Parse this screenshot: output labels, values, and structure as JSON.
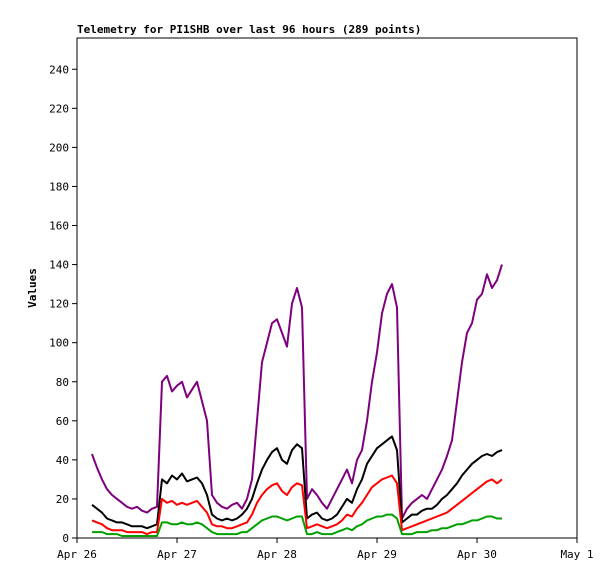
{
  "chart_data": {
    "type": "line",
    "title": "Telemetry for PI1SHB over last 96 hours (289 points)",
    "xlabel": "",
    "ylabel": "Values",
    "ylim": [
      0,
      256
    ],
    "yticks": [
      0,
      20,
      40,
      60,
      80,
      100,
      120,
      140,
      160,
      180,
      200,
      220,
      240
    ],
    "xlim": [
      "2016-04-26 00:00",
      "2016-05-01 00:00"
    ],
    "xticks": [
      "Apr 26",
      "Apr 27",
      "Apr 28",
      "Apr 29",
      "Apr 30",
      "May 1"
    ],
    "grid": false,
    "legend": "none",
    "x_time_of_day": [
      "04:00",
      "06:00",
      "08:00",
      "10:00",
      "12:00",
      "14:00",
      "16:00",
      "18:00",
      "20:00",
      "22:00"
    ],
    "x_day_index": [
      0,
      1,
      2,
      3,
      4
    ],
    "series": [
      {
        "color": "#7f007f",
        "x": [
          0.15,
          0.2,
          0.25,
          0.3,
          0.35,
          0.4,
          0.45,
          0.5,
          0.55,
          0.6,
          0.65,
          0.7,
          0.75,
          0.8,
          0.85,
          0.9,
          0.95,
          1.0,
          1.05,
          1.1,
          1.15,
          1.2,
          1.25,
          1.3,
          1.35,
          1.4,
          1.45,
          1.5,
          1.55,
          1.6,
          1.65,
          1.7,
          1.75,
          1.8,
          1.85,
          1.9,
          1.95,
          2.0,
          2.05,
          2.1,
          2.15,
          2.2,
          2.25,
          2.3,
          2.35,
          2.4,
          2.45,
          2.5,
          2.55,
          2.6,
          2.65,
          2.7,
          2.75,
          2.8,
          2.85,
          2.9,
          2.95,
          3.0,
          3.05,
          3.1,
          3.15,
          3.2,
          3.25,
          3.3,
          3.35,
          3.4,
          3.45,
          3.5,
          3.55,
          3.6,
          3.65,
          3.7,
          3.75,
          3.8,
          3.85,
          3.9,
          3.95,
          4.0,
          4.05,
          4.1,
          4.15,
          4.2,
          4.25
        ],
        "values": [
          43,
          36,
          30,
          25,
          22,
          20,
          18,
          16,
          15,
          16,
          14,
          13,
          15,
          16,
          80,
          83,
          75,
          78,
          80,
          72,
          76,
          80,
          70,
          60,
          22,
          18,
          16,
          15,
          17,
          18,
          15,
          20,
          30,
          60,
          90,
          100,
          110,
          112,
          105,
          98,
          120,
          128,
          118,
          20,
          25,
          22,
          18,
          15,
          20,
          25,
          30,
          35,
          28,
          40,
          45,
          60,
          80,
          95,
          115,
          125,
          130,
          118,
          10,
          15,
          18,
          20,
          22,
          20,
          25,
          30,
          35,
          42,
          50,
          70,
          90,
          105,
          110,
          122,
          125,
          135,
          128,
          132,
          140
        ]
      },
      {
        "color": "#000000",
        "x": [
          0.15,
          0.2,
          0.25,
          0.3,
          0.35,
          0.4,
          0.45,
          0.5,
          0.55,
          0.6,
          0.65,
          0.7,
          0.75,
          0.8,
          0.85,
          0.9,
          0.95,
          1.0,
          1.05,
          1.1,
          1.15,
          1.2,
          1.25,
          1.3,
          1.35,
          1.4,
          1.45,
          1.5,
          1.55,
          1.6,
          1.65,
          1.7,
          1.75,
          1.8,
          1.85,
          1.9,
          1.95,
          2.0,
          2.05,
          2.1,
          2.15,
          2.2,
          2.25,
          2.3,
          2.35,
          2.4,
          2.45,
          2.5,
          2.55,
          2.6,
          2.65,
          2.7,
          2.75,
          2.8,
          2.85,
          2.9,
          2.95,
          3.0,
          3.05,
          3.1,
          3.15,
          3.2,
          3.25,
          3.3,
          3.35,
          3.4,
          3.45,
          3.5,
          3.55,
          3.6,
          3.65,
          3.7,
          3.75,
          3.8,
          3.85,
          3.9,
          3.95,
          4.0,
          4.05,
          4.1,
          4.15,
          4.2,
          4.25
        ],
        "values": [
          17,
          15,
          13,
          10,
          9,
          8,
          8,
          7,
          6,
          6,
          6,
          5,
          6,
          7,
          30,
          28,
          32,
          30,
          33,
          29,
          30,
          31,
          28,
          22,
          12,
          10,
          9,
          10,
          9,
          10,
          12,
          15,
          20,
          28,
          35,
          40,
          44,
          46,
          40,
          38,
          45,
          48,
          46,
          10,
          12,
          13,
          10,
          9,
          10,
          12,
          16,
          20,
          18,
          25,
          30,
          38,
          42,
          46,
          48,
          50,
          52,
          45,
          8,
          10,
          12,
          12,
          14,
          15,
          15,
          17,
          20,
          22,
          25,
          28,
          32,
          35,
          38,
          40,
          42,
          43,
          42,
          44,
          45
        ]
      },
      {
        "color": "#ff0000",
        "x": [
          0.15,
          0.2,
          0.25,
          0.3,
          0.35,
          0.4,
          0.45,
          0.5,
          0.55,
          0.6,
          0.65,
          0.7,
          0.75,
          0.8,
          0.85,
          0.9,
          0.95,
          1.0,
          1.05,
          1.1,
          1.15,
          1.2,
          1.25,
          1.3,
          1.35,
          1.4,
          1.45,
          1.5,
          1.55,
          1.6,
          1.65,
          1.7,
          1.75,
          1.8,
          1.85,
          1.9,
          1.95,
          2.0,
          2.05,
          2.1,
          2.15,
          2.2,
          2.25,
          2.3,
          2.35,
          2.4,
          2.45,
          2.5,
          2.55,
          2.6,
          2.65,
          2.7,
          2.75,
          2.8,
          2.85,
          2.9,
          2.95,
          3.0,
          3.05,
          3.1,
          3.15,
          3.2,
          3.25,
          3.3,
          3.35,
          3.4,
          3.45,
          3.5,
          3.55,
          3.6,
          3.65,
          3.7,
          3.75,
          3.8,
          3.85,
          3.9,
          3.95,
          4.0,
          4.05,
          4.1,
          4.15,
          4.2,
          4.25
        ],
        "values": [
          9,
          8,
          7,
          5,
          4,
          4,
          4,
          3,
          3,
          3,
          3,
          2,
          3,
          3,
          20,
          18,
          19,
          17,
          18,
          17,
          18,
          19,
          16,
          13,
          7,
          6,
          6,
          5,
          5,
          6,
          7,
          8,
          12,
          18,
          22,
          25,
          27,
          28,
          24,
          22,
          26,
          28,
          27,
          5,
          6,
          7,
          6,
          5,
          6,
          7,
          9,
          12,
          11,
          15,
          18,
          22,
          26,
          28,
          30,
          31,
          32,
          28,
          4,
          5,
          6,
          7,
          8,
          9,
          10,
          11,
          12,
          13,
          15,
          17,
          19,
          21,
          23,
          25,
          27,
          29,
          30,
          28,
          30
        ]
      },
      {
        "color": "#00a000",
        "x": [
          0.15,
          0.2,
          0.25,
          0.3,
          0.35,
          0.4,
          0.45,
          0.5,
          0.55,
          0.6,
          0.65,
          0.7,
          0.75,
          0.8,
          0.85,
          0.9,
          0.95,
          1.0,
          1.05,
          1.1,
          1.15,
          1.2,
          1.25,
          1.3,
          1.35,
          1.4,
          1.45,
          1.5,
          1.55,
          1.6,
          1.65,
          1.7,
          1.75,
          1.8,
          1.85,
          1.9,
          1.95,
          2.0,
          2.05,
          2.1,
          2.15,
          2.2,
          2.25,
          2.3,
          2.35,
          2.4,
          2.45,
          2.5,
          2.55,
          2.6,
          2.65,
          2.7,
          2.75,
          2.8,
          2.85,
          2.9,
          2.95,
          3.0,
          3.05,
          3.1,
          3.15,
          3.2,
          3.25,
          3.3,
          3.35,
          3.4,
          3.45,
          3.5,
          3.55,
          3.6,
          3.65,
          3.7,
          3.75,
          3.8,
          3.85,
          3.9,
          3.95,
          4.0,
          4.05,
          4.1,
          4.15,
          4.2,
          4.25
        ],
        "values": [
          3,
          3,
          3,
          2,
          2,
          2,
          1,
          1,
          1,
          1,
          1,
          1,
          1,
          1,
          8,
          8,
          7,
          7,
          8,
          7,
          7,
          8,
          7,
          5,
          3,
          2,
          2,
          2,
          2,
          2,
          3,
          3,
          5,
          7,
          9,
          10,
          11,
          11,
          10,
          9,
          10,
          11,
          11,
          2,
          2,
          3,
          2,
          2,
          2,
          3,
          4,
          5,
          4,
          6,
          7,
          9,
          10,
          11,
          11,
          12,
          12,
          10,
          2,
          2,
          2,
          3,
          3,
          3,
          4,
          4,
          5,
          5,
          6,
          7,
          7,
          8,
          9,
          9,
          10,
          11,
          11,
          10,
          10
        ]
      }
    ]
  }
}
